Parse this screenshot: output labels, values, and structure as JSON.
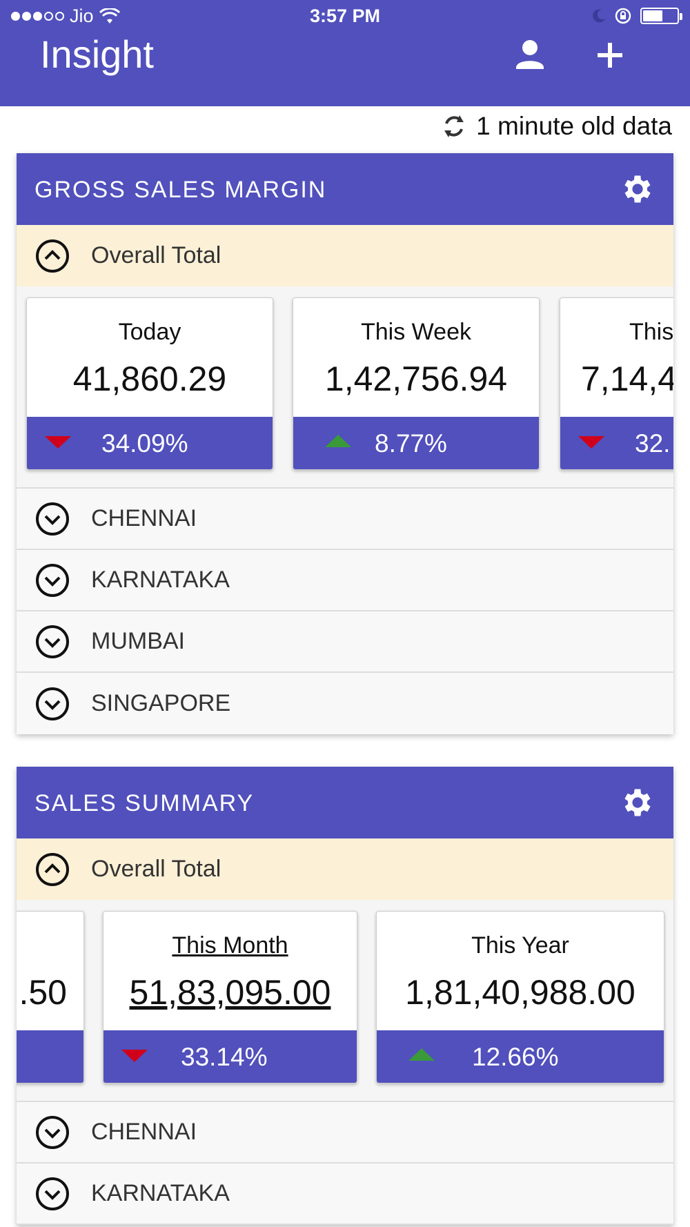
{
  "status_bar": {
    "carrier": "Jio",
    "time": "3:57 PM"
  },
  "app": {
    "title": "Insight"
  },
  "refresh_text": "1 minute old data",
  "colors": {
    "primary": "#5150bc",
    "overall_bg": "#fcf0d6",
    "down": "#d0021b",
    "up": "#3a9a3a"
  },
  "cards": [
    {
      "title": "GROSS SALES MARGIN",
      "overall_label": "Overall Total",
      "tiles": [
        {
          "label": "Today",
          "value": "41,860.29",
          "change": "34.09%",
          "trend": "down"
        },
        {
          "label": "This Week",
          "value": "1,42,756.94",
          "change": "8.77%",
          "trend": "up"
        },
        {
          "label": "This",
          "value": "7,14,4",
          "change": "32.",
          "trend": "down"
        }
      ],
      "regions": [
        "CHENNAI",
        "KARNATAKA",
        "MUMBAI",
        "SINGAPORE"
      ]
    },
    {
      "title": "SALES SUMMARY",
      "overall_label": "Overall Total",
      "tiles": [
        {
          "label": "",
          "value": ".50",
          "change": "",
          "trend": ""
        },
        {
          "label": "This Month",
          "value": "51,83,095.00",
          "change": "33.14%",
          "trend": "down"
        },
        {
          "label": "This Year",
          "value": "1,81,40,988.00",
          "change": "12.66%",
          "trend": "up"
        }
      ],
      "regions": [
        "CHENNAI",
        "KARNATAKA"
      ]
    }
  ]
}
